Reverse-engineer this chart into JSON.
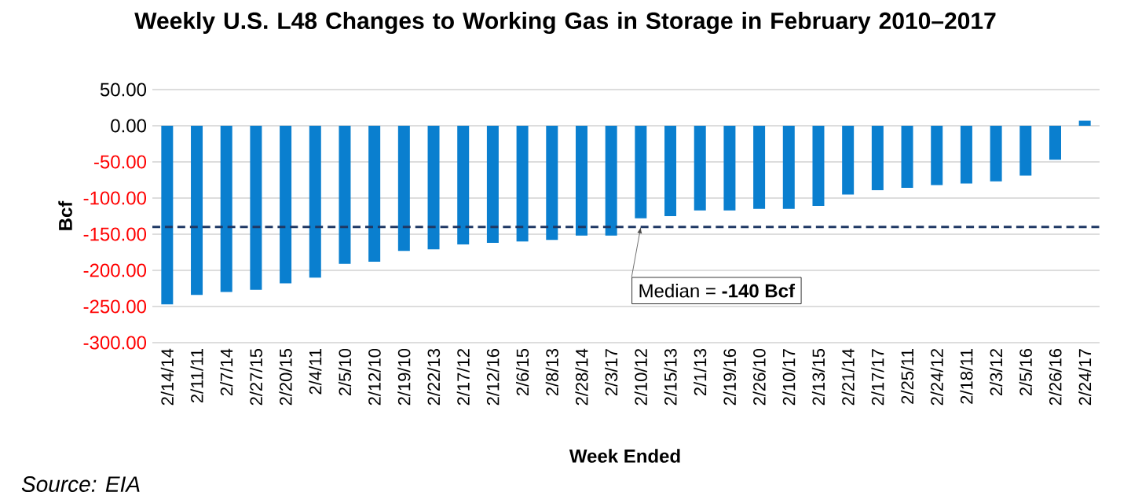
{
  "chart_data": {
    "type": "bar",
    "title": "Weekly U.S. L48 Changes to Working Gas in Storage in February 2010–2017",
    "xlabel": "Week Ended",
    "ylabel": "Bcf",
    "categories": [
      "2/14/14",
      "2/11/11",
      "2/7/14",
      "2/27/15",
      "2/20/15",
      "2/4/11",
      "2/5/10",
      "2/12/10",
      "2/19/10",
      "2/22/13",
      "2/17/12",
      "2/12/16",
      "2/6/15",
      "2/8/13",
      "2/28/14",
      "2/3/17",
      "2/10/12",
      "2/15/13",
      "2/1/13",
      "2/19/16",
      "2/26/10",
      "2/10/17",
      "2/13/15",
      "2/21/14",
      "2/17/17",
      "2/25/11",
      "2/24/12",
      "2/18/11",
      "2/3/12",
      "2/5/16",
      "2/26/16",
      "2/24/17"
    ],
    "values": [
      -247,
      -234,
      -230,
      -227,
      -218,
      -210,
      -191,
      -188,
      -173,
      -171,
      -164,
      -162,
      -160,
      -158,
      -152,
      -152,
      -128,
      -125,
      -117,
      -117,
      -115,
      -115,
      -111,
      -95,
      -89,
      -86,
      -82,
      -80,
      -77,
      -69,
      -47,
      7
    ],
    "color": "#0a7fcf",
    "ylim": [
      -300,
      50
    ],
    "yticks": [
      {
        "value": -300,
        "label": "-300.00"
      },
      {
        "value": -250,
        "label": "-250.00"
      },
      {
        "value": -200,
        "label": "-200.00"
      },
      {
        "value": -150,
        "label": "-150.00"
      },
      {
        "value": -100,
        "label": "-100.00"
      },
      {
        "value": -50,
        "label": "-50.00"
      },
      {
        "value": 0,
        "label": "0.00"
      },
      {
        "value": 50,
        "label": "50.00"
      }
    ],
    "grid": "y",
    "ref_lines": [
      {
        "axis": "y",
        "value": -140,
        "label": "Median = **-140 Bcf**",
        "color": "#1f3864",
        "line_style": "dashed"
      }
    ],
    "annotations": [
      "*Source: EIA*"
    ]
  }
}
